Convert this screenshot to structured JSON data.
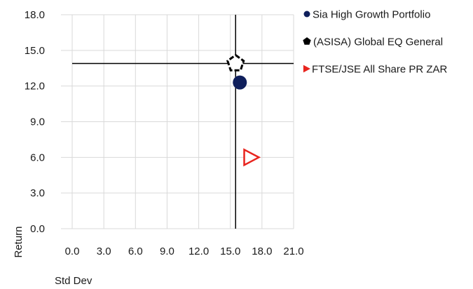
{
  "chart_data": {
    "type": "scatter",
    "xlabel": "Std Dev",
    "ylabel": "Return",
    "xlim": [
      0,
      21
    ],
    "ylim": [
      0,
      18
    ],
    "x_ticks": [
      "0.0",
      "3.0",
      "6.0",
      "9.0",
      "12.0",
      "15.0",
      "18.0",
      "21.0"
    ],
    "y_ticks": [
      "0.0",
      "3.0",
      "6.0",
      "9.0",
      "12.0",
      "15.0",
      "18.0"
    ],
    "grid": true,
    "legend_position": "right",
    "reference_lines": {
      "x": 15.5,
      "y": 13.9
    },
    "series": [
      {
        "name": "Sia High Growth Portfolio",
        "marker": "circle",
        "color": "#0f1f5c",
        "x": 15.9,
        "y": 12.3
      },
      {
        "name": "(ASISA) Global EQ General",
        "marker": "pentagon",
        "color": "#000000",
        "x": 15.5,
        "y": 13.9
      },
      {
        "name": "FTSE/JSE All Share PR ZAR",
        "marker": "triangle-right",
        "color": "#e8241e",
        "x": 16.9,
        "y": 6.0
      }
    ]
  }
}
